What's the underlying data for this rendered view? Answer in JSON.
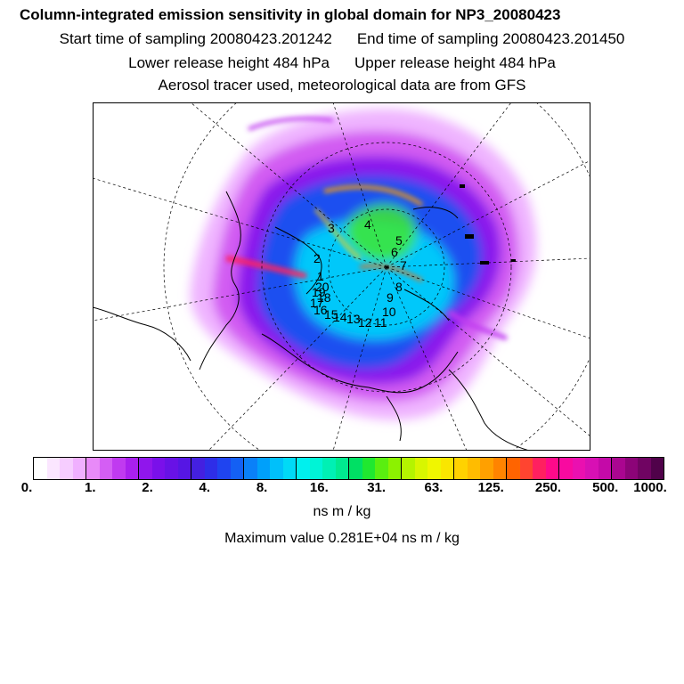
{
  "header": {
    "title": "Column-integrated emission sensitivity in global domain for NP3_20080423",
    "start_time": "Start time of sampling 20080423.201242",
    "end_time": "End time of sampling 20080423.201450",
    "lower_height": "Lower release height  484 hPa",
    "upper_height": "Upper release height  484 hPa",
    "tracer": "Aerosol tracer used, meteorological data are from GFS"
  },
  "map": {
    "projection": "polar stereographic, North Pole",
    "site_labels": [
      "1",
      "2",
      "3",
      "4",
      "5",
      "6",
      "7",
      "8",
      "9",
      "10",
      "11",
      "12",
      "13",
      "14",
      "15",
      "16",
      "17",
      "18",
      "19",
      "20"
    ]
  },
  "colorbar": {
    "tick_labels": [
      "0.",
      "1.",
      "2.",
      "4.",
      "8.",
      "16.",
      "31.",
      "63.",
      "125.",
      "250.",
      "500.",
      "1000."
    ],
    "colors": [
      "#ffffff",
      "#fbe6ff",
      "#f6cdff",
      "#f0b0ff",
      "#e88af8",
      "#d45ef4",
      "#c03af0",
      "#a920ee",
      "#9016ec",
      "#7a10ea",
      "#6812e6",
      "#5616e4",
      "#4420e0",
      "#2e2ee8",
      "#1f44f0",
      "#1460f4",
      "#0a80f8",
      "#00a0fa",
      "#00c0fa",
      "#00daf6",
      "#00f0ee",
      "#00f4d6",
      "#00f0b4",
      "#00ea90",
      "#00e064",
      "#20e830",
      "#5aee10",
      "#8cf200",
      "#b4f400",
      "#d8f600",
      "#f0f600",
      "#fae600",
      "#ffd200",
      "#ffbc00",
      "#ffa000",
      "#ff8400",
      "#ff6400",
      "#ff4430",
      "#ff2060",
      "#ff0a8a",
      "#f80aa0",
      "#ea10b0",
      "#d810b4",
      "#c40aa8",
      "#aa0690",
      "#8c0478",
      "#700462",
      "#50024a"
    ],
    "units": "ns m / kg"
  },
  "max_value": "Maximum value  0.281E+04 ns m / kg"
}
